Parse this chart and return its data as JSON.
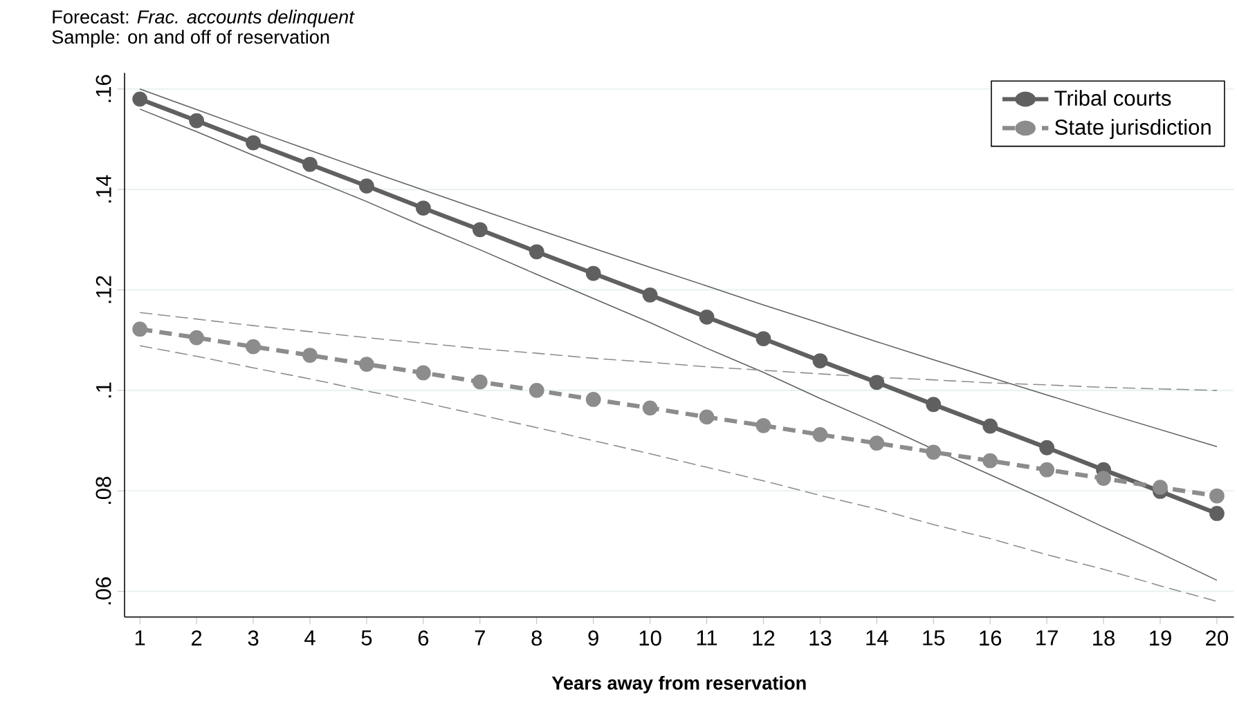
{
  "chart_data": {
    "type": "line",
    "title": "Forecast: *Frac. accounts delinquent*",
    "subtitle": "Sample: on and off of reservation",
    "xlabel": "Years away from reservation",
    "x": [
      1,
      2,
      3,
      4,
      5,
      6,
      7,
      8,
      9,
      10,
      11,
      12,
      13,
      14,
      15,
      16,
      17,
      18,
      19,
      20
    ],
    "series": [
      {
        "color": "#606060",
        "line_style": "solid",
        "marker": "none",
        "values": [
          0.16,
          0.1559,
          0.1518,
          0.1478,
          0.1438,
          0.1399,
          0.136,
          0.1321,
          0.1283,
          0.1245,
          0.1208,
          0.117,
          0.1134,
          0.1097,
          0.1061,
          0.1026,
          0.0991,
          0.0956,
          0.0922,
          0.0888
        ]
      },
      {
        "color": "#606060",
        "line_style": "solid",
        "marker": "none",
        "values": [
          0.156,
          0.1515,
          0.1468,
          0.1422,
          0.1376,
          0.1327,
          0.128,
          0.1231,
          0.1183,
          0.1135,
          0.1084,
          0.1036,
          0.0984,
          0.0935,
          0.0883,
          0.0832,
          0.0781,
          0.0728,
          0.0676,
          0.0622
        ]
      },
      {
        "color": "#8c8c8c",
        "line_style": "dashed",
        "marker": "none",
        "values": [
          0.1155,
          0.1142,
          0.1129,
          0.1117,
          0.1105,
          0.1094,
          0.1083,
          0.1074,
          0.1064,
          0.1056,
          0.1047,
          0.104,
          0.1033,
          0.1026,
          0.1021,
          0.1015,
          0.1011,
          0.1006,
          0.1003,
          0.1
        ]
      },
      {
        "color": "#8c8c8c",
        "line_style": "dashed",
        "marker": "none",
        "values": [
          0.1089,
          0.1068,
          0.1045,
          0.1023,
          0.0999,
          0.0976,
          0.0951,
          0.0926,
          0.09,
          0.0874,
          0.0847,
          0.082,
          0.0791,
          0.0764,
          0.0733,
          0.0705,
          0.0673,
          0.0644,
          0.0611,
          0.058
        ]
      },
      {
        "name": "Tribal courts",
        "color": "#606060",
        "line_style": "solid",
        "values": [
          0.158,
          0.1537,
          0.1493,
          0.145,
          0.1407,
          0.1363,
          0.132,
          0.1276,
          0.1233,
          0.119,
          0.1146,
          0.1103,
          0.1059,
          0.1016,
          0.0972,
          0.0929,
          0.0886,
          0.0842,
          0.0799,
          0.0755
        ]
      },
      {
        "name": "State jurisdiction",
        "color": "#8c8c8c",
        "line_style": "dashed",
        "values": [
          0.1122,
          0.1105,
          0.1087,
          0.107,
          0.1052,
          0.1035,
          0.1017,
          0.1,
          0.0982,
          0.0965,
          0.0947,
          0.093,
          0.0912,
          0.0895,
          0.0877,
          0.086,
          0.0842,
          0.0825,
          0.0807,
          0.079
        ]
      }
    ],
    "xlim": [
      0.73,
      20.3
    ],
    "xticks": [
      1,
      2,
      3,
      4,
      5,
      6,
      7,
      8,
      9,
      10,
      11,
      12,
      13,
      14,
      15,
      16,
      17,
      18,
      19,
      20
    ],
    "ylim": [
      0.0549,
      0.1632
    ],
    "yticks": [
      {
        "value": 0.06,
        "label": ".06"
      },
      {
        "value": 0.08,
        "label": ".08"
      },
      {
        "value": 0.1,
        "label": ".1"
      },
      {
        "value": 0.12,
        "label": ".12"
      },
      {
        "value": 0.14,
        "label": ".14"
      },
      {
        "value": 0.16,
        "label": ".16"
      }
    ],
    "grid": "y",
    "legend": "top right",
    "marker": "circle"
  }
}
